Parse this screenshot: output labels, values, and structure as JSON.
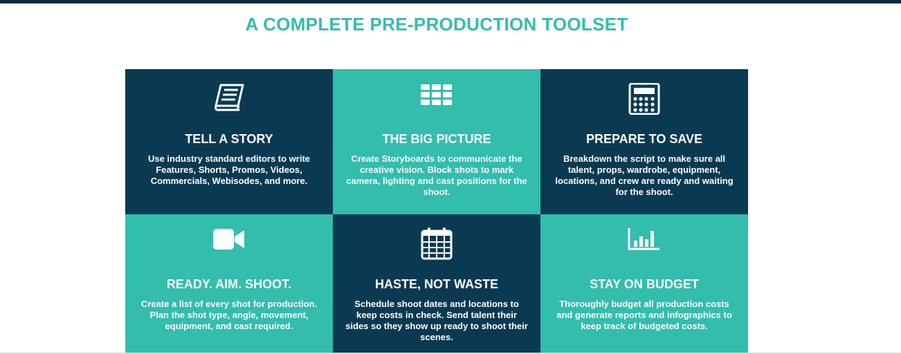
{
  "heading": "A COMPLETE PRE-PRODUCTION TOOLSET",
  "colors": {
    "teal": "#33bdac",
    "dark": "#0a3a51"
  },
  "features": [
    {
      "icon": "book-icon",
      "title": "TELL A STORY",
      "desc": "Use industry standard editors to write Features, Shorts, Promos, Videos, Commercials, Webisodes, and more."
    },
    {
      "icon": "grid-icon",
      "title": "THE BIG PICTURE",
      "desc": "Create Storyboards to communicate the creative vision. Block shots to mark camera, lighting and cast positions for the shoot."
    },
    {
      "icon": "calculator-icon",
      "title": "PREPARE TO SAVE",
      "desc": "Breakdown the script to make sure all talent, props, wardrobe, equipment, locations, and crew are ready and waiting for the shoot."
    },
    {
      "icon": "video-camera-icon",
      "title": "READY. AIM. SHOOT.",
      "desc": "Create a list of every shot for production. Plan the shot type, angle, movement, equipment, and cast required."
    },
    {
      "icon": "calendar-icon",
      "title": "HASTE, NOT WASTE",
      "desc": "Schedule shoot dates and locations to keep costs in check. Send talent their sides so they show up ready to shoot their scenes."
    },
    {
      "icon": "bar-chart-icon",
      "title": "STAY ON BUDGET",
      "desc": "Thoroughly budget all production costs and generate reports and infographics to keep track of budgeted costs."
    }
  ]
}
